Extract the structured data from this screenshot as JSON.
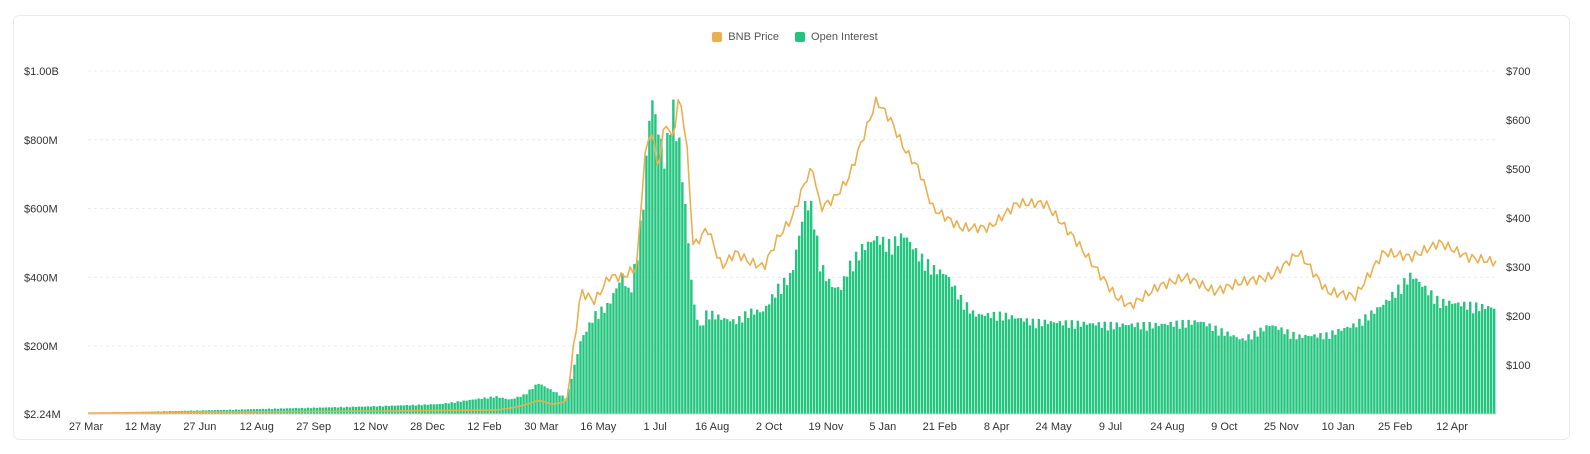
{
  "chart_data": {
    "type": "bar",
    "legend": [
      {
        "name": "BNB Price",
        "color": "#e9b052"
      },
      {
        "name": "Open Interest",
        "color": "#22c47e"
      }
    ],
    "y_left": {
      "ticks": [
        "$2.24M",
        "$200M",
        "$400M",
        "$600M",
        "$800M",
        "$1.00B"
      ],
      "tick_values": [
        2.24,
        200,
        400,
        600,
        800,
        1000
      ],
      "unit": "M USD"
    },
    "y_right": {
      "ticks": [
        "$100",
        "$200",
        "$300",
        "$400",
        "$500",
        "$600",
        "$700"
      ],
      "tick_values": [
        100,
        200,
        300,
        400,
        500,
        600,
        700
      ]
    },
    "x_ticks": [
      "27 Mar",
      "12 May",
      "27 Jun",
      "12 Aug",
      "27 Sep",
      "12 Nov",
      "28 Dec",
      "12 Feb",
      "30 Mar",
      "16 May",
      "1 Jul",
      "16 Aug",
      "2 Oct",
      "19 Nov",
      "5 Jan",
      "21 Feb",
      "8 Apr",
      "24 May",
      "9 Jul",
      "24 Aug",
      "9 Oct",
      "25 Nov",
      "10 Jan",
      "25 Feb",
      "12 Apr"
    ],
    "series": [
      {
        "name": "Open Interest",
        "axis": "left",
        "type": "bar",
        "x_fraction": [
          0.0,
          0.05,
          0.1,
          0.15,
          0.2,
          0.25,
          0.29,
          0.3,
          0.31,
          0.32,
          0.34,
          0.35,
          0.36,
          0.37,
          0.38,
          0.385,
          0.39,
          0.395,
          0.4,
          0.405,
          0.41,
          0.415,
          0.42,
          0.425,
          0.43,
          0.435,
          0.44,
          0.45,
          0.46,
          0.47,
          0.48,
          0.49,
          0.5,
          0.51,
          0.515,
          0.52,
          0.525,
          0.53,
          0.535,
          0.54,
          0.55,
          0.56,
          0.57,
          0.58,
          0.59,
          0.6,
          0.61,
          0.62,
          0.63,
          0.65,
          0.67,
          0.7,
          0.73,
          0.76,
          0.79,
          0.82,
          0.84,
          0.86,
          0.88,
          0.9,
          0.92,
          0.94,
          0.96,
          0.98,
          1.0
        ],
        "values": [
          5,
          10,
          15,
          20,
          25,
          32,
          55,
          45,
          60,
          95,
          50,
          220,
          300,
          330,
          420,
          360,
          480,
          650,
          960,
          860,
          760,
          940,
          820,
          600,
          340,
          260,
          310,
          290,
          280,
          310,
          310,
          380,
          420,
          640,
          620,
          460,
          410,
          380,
          380,
          440,
          500,
          530,
          510,
          540,
          480,
          440,
          420,
          350,
          300,
          300,
          280,
          275,
          270,
          270,
          280,
          225,
          270,
          235,
          240,
          270,
          330,
          420,
          340,
          330,
          320
        ]
      },
      {
        "name": "BNB Price",
        "axis": "right",
        "type": "line",
        "x_fraction": [
          0.0,
          0.1,
          0.2,
          0.29,
          0.3,
          0.31,
          0.32,
          0.33,
          0.34,
          0.35,
          0.36,
          0.37,
          0.38,
          0.385,
          0.39,
          0.395,
          0.4,
          0.405,
          0.41,
          0.415,
          0.42,
          0.425,
          0.43,
          0.44,
          0.45,
          0.46,
          0.47,
          0.48,
          0.49,
          0.5,
          0.51,
          0.515,
          0.52,
          0.53,
          0.54,
          0.55,
          0.56,
          0.57,
          0.58,
          0.59,
          0.6,
          0.62,
          0.64,
          0.66,
          0.68,
          0.7,
          0.72,
          0.73,
          0.74,
          0.76,
          0.78,
          0.8,
          0.82,
          0.84,
          0.86,
          0.88,
          0.9,
          0.92,
          0.94,
          0.96,
          0.98,
          1.0
        ],
        "values": [
          2,
          4,
          6,
          8,
          12,
          18,
          28,
          20,
          25,
          250,
          230,
          280,
          280,
          290,
          300,
          520,
          580,
          500,
          600,
          560,
          650,
          560,
          340,
          380,
          300,
          330,
          310,
          300,
          360,
          400,
          480,
          500,
          420,
          440,
          480,
          560,
          640,
          600,
          540,
          500,
          420,
          380,
          380,
          430,
          430,
          360,
          280,
          240,
          220,
          260,
          280,
          250,
          270,
          280,
          330,
          250,
          240,
          330,
          320,
          350,
          320,
          310
        ]
      }
    ],
    "grid": "horizontal dashed"
  }
}
